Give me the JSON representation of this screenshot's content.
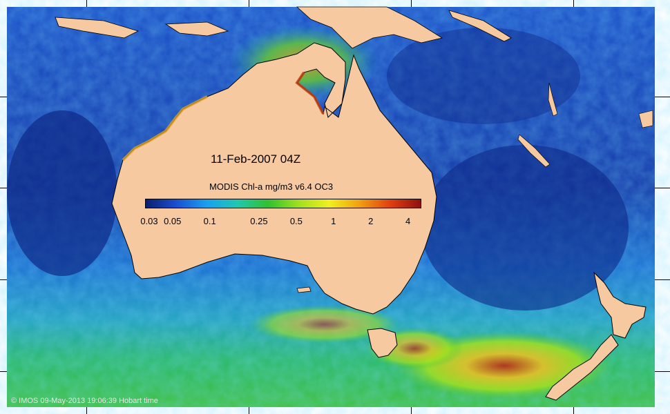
{
  "map": {
    "title": "11-Feb-2007 04Z",
    "credit": "© IMOS 09-May-2013 19:06:39 Hobart time"
  },
  "legend": {
    "title": "MODIS Chl-a mg/m3 v6.4 OC3",
    "scale": "logarithmic",
    "min": 0.03,
    "max": 5,
    "ticks": [
      {
        "label": "0.03",
        "value": 0.03
      },
      {
        "label": "0.05",
        "value": 0.05
      },
      {
        "label": "0.1",
        "value": 0.1
      },
      {
        "label": "0.25",
        "value": 0.25
      },
      {
        "label": "0.5",
        "value": 0.5
      },
      {
        "label": "1",
        "value": 1
      },
      {
        "label": "2",
        "value": 2
      },
      {
        "label": "4",
        "value": 4
      }
    ],
    "colors": [
      "#0a1e6e",
      "#1a4fd0",
      "#1aa0f0",
      "#20c8b0",
      "#30c030",
      "#a0e020",
      "#f0f020",
      "#f0a010",
      "#e04010",
      "#901010"
    ]
  },
  "colors": {
    "land": "#f7c9a0",
    "ocean_low": "#102a8a",
    "ocean_mid": "#1e7ad8",
    "ocean_high": "#2ec06a"
  }
}
